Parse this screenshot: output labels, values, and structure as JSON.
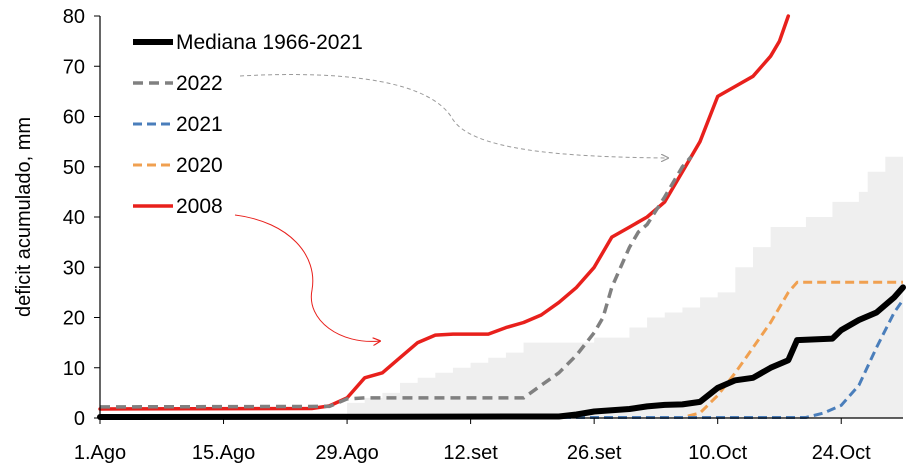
{
  "chart_data": {
    "type": "line",
    "ylabel": "deficit acumulado, mm",
    "xlabel": "",
    "ylim": [
      0,
      80
    ],
    "xlim": [
      0,
      91
    ],
    "y_ticks": [
      0,
      10,
      20,
      30,
      40,
      50,
      60,
      70,
      80
    ],
    "x_ticks": [
      {
        "day": 0,
        "label": "1.Ago"
      },
      {
        "day": 14,
        "label": "15.Ago"
      },
      {
        "day": 28,
        "label": "29.Ago"
      },
      {
        "day": 42,
        "label": "12.set"
      },
      {
        "day": 56,
        "label": "26.set"
      },
      {
        "day": 70,
        "label": "10.Oct"
      },
      {
        "day": 84,
        "label": "24.Oct"
      }
    ],
    "grid": false,
    "legend_position": "top-left",
    "band": {
      "color": "#efefef",
      "values": [
        [
          28,
          3
        ],
        [
          30,
          4
        ],
        [
          32,
          5
        ],
        [
          34,
          7
        ],
        [
          36,
          8
        ],
        [
          38,
          9
        ],
        [
          40,
          10
        ],
        [
          42,
          11
        ],
        [
          44,
          12
        ],
        [
          46,
          13
        ],
        [
          48,
          15
        ],
        [
          52,
          15
        ],
        [
          56,
          16
        ],
        [
          60,
          18
        ],
        [
          62,
          20
        ],
        [
          64,
          21
        ],
        [
          66,
          22
        ],
        [
          68,
          24
        ],
        [
          70,
          25
        ],
        [
          72,
          30
        ],
        [
          74,
          34
        ],
        [
          76,
          38
        ],
        [
          80,
          40
        ],
        [
          83,
          43
        ],
        [
          86,
          45
        ],
        [
          87,
          49
        ],
        [
          89,
          52
        ],
        [
          91,
          57
        ]
      ]
    },
    "series": [
      {
        "name": "Mediana 1966-2021",
        "color": "#000000",
        "width": 6,
        "dash": "",
        "points": [
          [
            0,
            0.2
          ],
          [
            52,
            0.3
          ],
          [
            54,
            0.7
          ],
          [
            56,
            1.3
          ],
          [
            60,
            1.8
          ],
          [
            62,
            2.3
          ],
          [
            64,
            2.6
          ],
          [
            66,
            2.7
          ],
          [
            68,
            3.2
          ],
          [
            70,
            6.0
          ],
          [
            72,
            7.5
          ],
          [
            74,
            8.0
          ],
          [
            76,
            10.0
          ],
          [
            78,
            11.5
          ],
          [
            79,
            15.5
          ],
          [
            83,
            15.8
          ],
          [
            84,
            17.5
          ],
          [
            86,
            19.5
          ],
          [
            88,
            21.0
          ],
          [
            90,
            24.0
          ],
          [
            91,
            26.0
          ]
        ]
      },
      {
        "name": "2022",
        "color": "#808080",
        "width": 3.5,
        "dash": "10,6",
        "points": [
          [
            0,
            2.2
          ],
          [
            26,
            2.3
          ],
          [
            28,
            3.8
          ],
          [
            30,
            4.0
          ],
          [
            44,
            4.0
          ],
          [
            48,
            4.0
          ],
          [
            50,
            6.5
          ],
          [
            52,
            9.0
          ],
          [
            54,
            12.5
          ],
          [
            56,
            17.0
          ],
          [
            57,
            20.0
          ],
          [
            58,
            26.0
          ],
          [
            59,
            30.0
          ],
          [
            60,
            34.0
          ],
          [
            61,
            37.0
          ],
          [
            62,
            38.5
          ],
          [
            64,
            44.0
          ],
          [
            66,
            50.0
          ],
          [
            67,
            52.0
          ]
        ]
      },
      {
        "name": "2021",
        "color": "#4a7ebb",
        "width": 3,
        "dash": "9,5",
        "points": [
          [
            0,
            0.1
          ],
          [
            80,
            0.1
          ],
          [
            82,
            1.0
          ],
          [
            84,
            2.5
          ],
          [
            86,
            6.5
          ],
          [
            88,
            14.0
          ],
          [
            90,
            21.0
          ],
          [
            91,
            23.5
          ]
        ]
      },
      {
        "name": "2020",
        "color": "#f0a050",
        "width": 3,
        "dash": "9,5",
        "points": [
          [
            0,
            0.1
          ],
          [
            66,
            0.1
          ],
          [
            68,
            1.0
          ],
          [
            70,
            4.5
          ],
          [
            72,
            9.0
          ],
          [
            74,
            14.0
          ],
          [
            76,
            19.0
          ],
          [
            78,
            25.0
          ],
          [
            79,
            27.0
          ],
          [
            91,
            27.0
          ]
        ]
      },
      {
        "name": "2008",
        "color": "#e8201c",
        "width": 3.5,
        "dash": "",
        "points": [
          [
            0,
            1.8
          ],
          [
            24,
            1.9
          ],
          [
            26,
            2.4
          ],
          [
            28,
            4.0
          ],
          [
            30,
            8.0
          ],
          [
            32,
            9.0
          ],
          [
            34,
            12.0
          ],
          [
            36,
            15.0
          ],
          [
            38,
            16.5
          ],
          [
            40,
            16.7
          ],
          [
            44,
            16.7
          ],
          [
            46,
            18.0
          ],
          [
            48,
            19.0
          ],
          [
            50,
            20.5
          ],
          [
            52,
            23.0
          ],
          [
            54,
            26.0
          ],
          [
            56,
            30.0
          ],
          [
            58,
            36.0
          ],
          [
            60,
            38.0
          ],
          [
            62,
            40.0
          ],
          [
            64,
            43.0
          ],
          [
            66,
            49.0
          ],
          [
            68,
            55.0
          ],
          [
            70,
            64.0
          ],
          [
            72,
            66.0
          ],
          [
            74,
            68.0
          ],
          [
            76,
            72.0
          ],
          [
            77,
            75.0
          ],
          [
            78,
            80.0
          ]
        ]
      }
    ],
    "annotations": [
      {
        "from_series": "2022",
        "color": "#9a9a9a",
        "dash": "4,3"
      },
      {
        "from_series": "2008",
        "color": "#e8201c",
        "dash": ""
      }
    ]
  }
}
